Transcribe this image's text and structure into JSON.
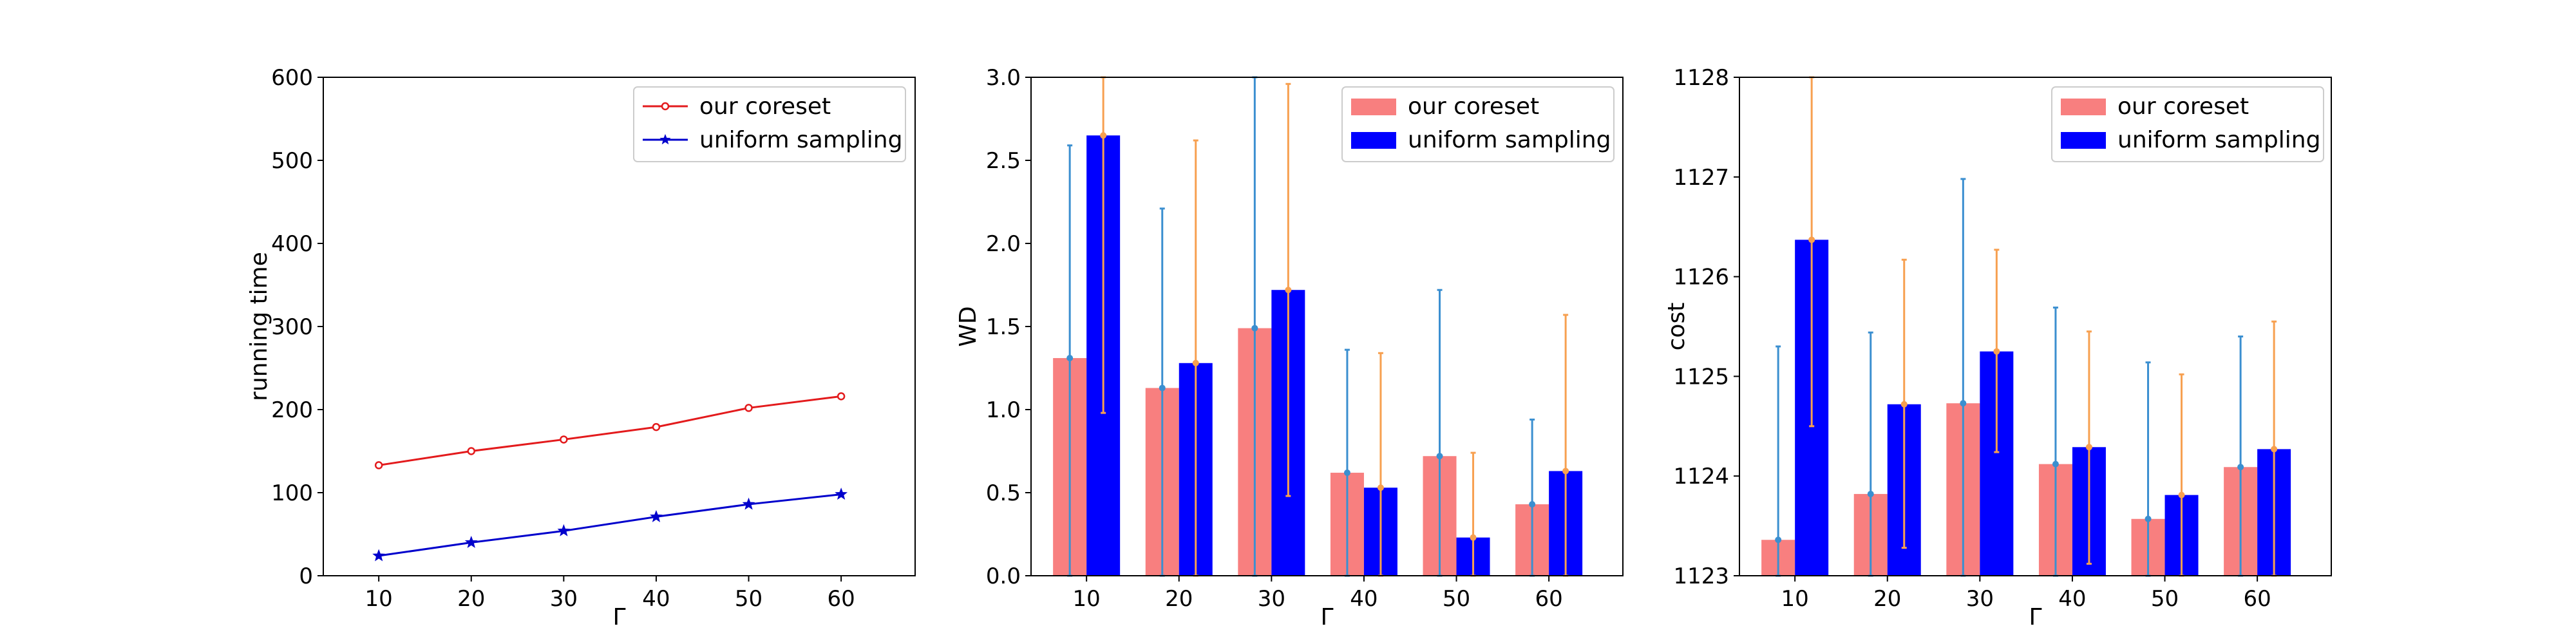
{
  "chart_data": [
    {
      "type": "line",
      "xlabel": "Γ",
      "ylabel": "running time",
      "xlim": [
        4,
        68
      ],
      "ylim": [
        0,
        600
      ],
      "x": [
        10,
        20,
        30,
        40,
        50,
        60
      ],
      "x_ticks": [
        "10",
        "20",
        "30",
        "40",
        "50",
        "60"
      ],
      "y_ticks": [
        "0",
        "100",
        "200",
        "300",
        "400",
        "500",
        "600"
      ],
      "grid": false,
      "legend_position": "top-right",
      "series": [
        {
          "name": "our coreset",
          "values": [
            133,
            150,
            164,
            179,
            202,
            216
          ],
          "color": "#e31a1c",
          "marker": "circle"
        },
        {
          "name": "uniform sampling",
          "values": [
            24,
            40,
            54,
            71,
            86,
            98
          ],
          "color": "#0000cc",
          "marker": "star"
        }
      ]
    },
    {
      "type": "bar",
      "xlabel": "Γ",
      "ylabel": "WD",
      "xlim": [
        4,
        68
      ],
      "ylim": [
        0,
        3
      ],
      "x": [
        10,
        20,
        30,
        40,
        50,
        60
      ],
      "x_ticks": [
        "10",
        "20",
        "30",
        "40",
        "50",
        "60"
      ],
      "y_ticks": [
        "0.0",
        "0.5",
        "1.0",
        "1.5",
        "2.0",
        "2.5",
        "3.0"
      ],
      "grid": false,
      "legend_position": "top-right",
      "series": [
        {
          "name": "our coreset",
          "values": [
            1.31,
            1.13,
            1.49,
            0.62,
            0.72,
            0.43
          ],
          "error_low": [
            0.0,
            0.0,
            0.0,
            0.0,
            0.0,
            0.0
          ],
          "error_high": [
            2.59,
            2.21,
            3.0,
            1.36,
            1.72,
            0.94
          ],
          "color": "#f87f7f",
          "error_color": "#3b8fd0"
        },
        {
          "name": "uniform sampling",
          "values": [
            2.65,
            1.28,
            1.72,
            0.53,
            0.23,
            0.63
          ],
          "error_low": [
            0.98,
            0.0,
            0.48,
            0.0,
            0.0,
            0.0
          ],
          "error_high": [
            3.0,
            2.62,
            2.96,
            1.34,
            0.74,
            1.57
          ],
          "color": "#0000ff",
          "error_color": "#f7a050"
        }
      ]
    },
    {
      "type": "bar",
      "xlabel": "Γ",
      "ylabel": "cost",
      "xlim": [
        4,
        68
      ],
      "ylim": [
        1123,
        1128
      ],
      "x": [
        10,
        20,
        30,
        40,
        50,
        60
      ],
      "x_ticks": [
        "10",
        "20",
        "30",
        "40",
        "50",
        "60"
      ],
      "y_ticks": [
        "1123",
        "1124",
        "1125",
        "1126",
        "1127",
        "1128"
      ],
      "grid": false,
      "legend_position": "top-right",
      "series": [
        {
          "name": "our coreset",
          "values": [
            1123.36,
            1123.82,
            1124.73,
            1124.12,
            1123.57,
            1124.09
          ],
          "error_low": [
            1123.0,
            1123.0,
            1123.0,
            1123.0,
            1123.0,
            1123.0
          ],
          "error_high": [
            1125.3,
            1125.44,
            1126.98,
            1125.69,
            1125.14,
            1125.4
          ],
          "color": "#f87f7f",
          "error_color": "#3b8fd0"
        },
        {
          "name": "uniform sampling",
          "values": [
            1126.37,
            1124.72,
            1125.25,
            1124.29,
            1123.81,
            1124.27
          ],
          "error_low": [
            1124.5,
            1123.28,
            1124.24,
            1123.12,
            1123.0,
            1123.0
          ],
          "error_high": [
            1128.0,
            1126.17,
            1126.27,
            1125.45,
            1125.02,
            1125.55
          ],
          "color": "#0000ff",
          "error_color": "#f7a050"
        }
      ]
    }
  ]
}
